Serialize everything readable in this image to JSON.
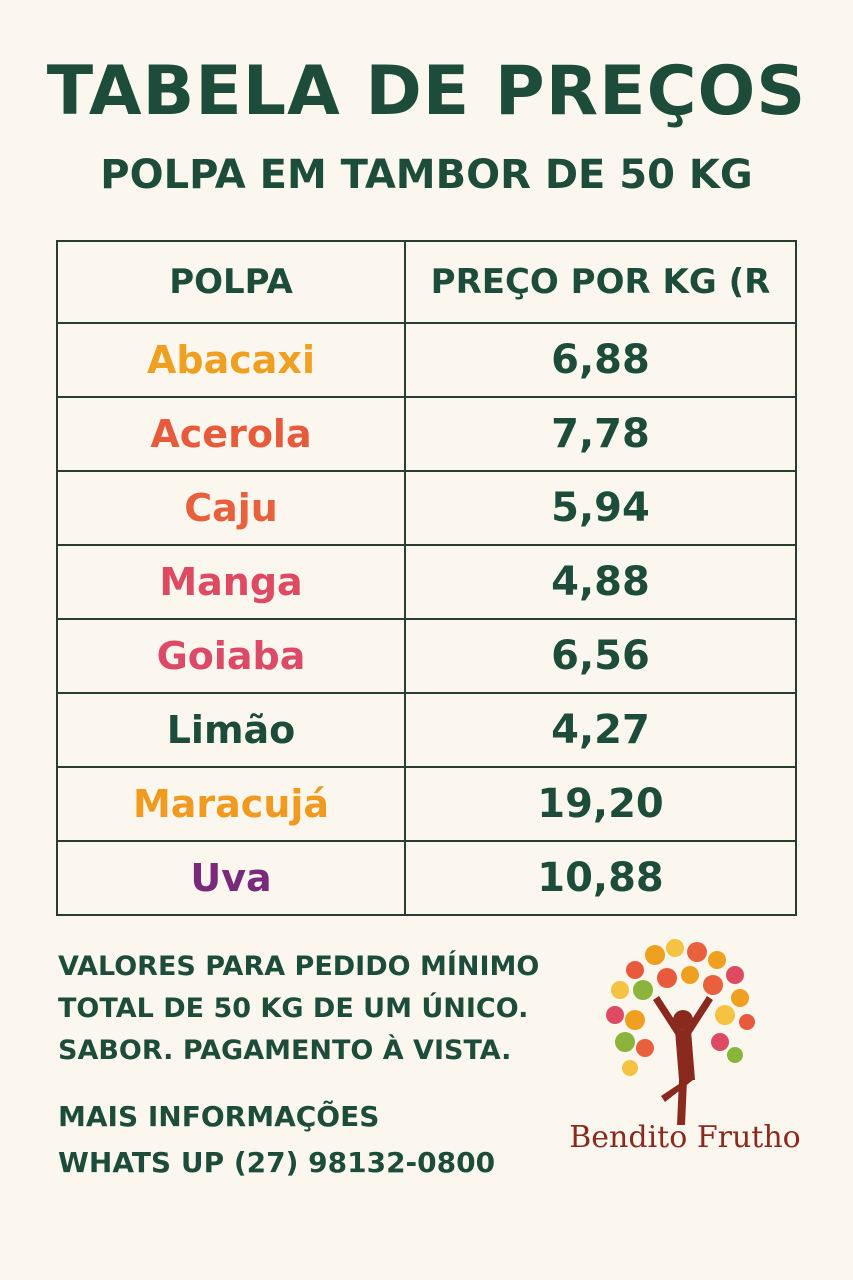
{
  "header": {
    "title": "TABELA DE PREÇOS",
    "subtitle": "POLPA EM TAMBOR DE 50 KG"
  },
  "table": {
    "columns": [
      "POLPA",
      "PREÇO POR KG (R"
    ],
    "rows": [
      {
        "fruit": "Abacaxi",
        "price": "6,88",
        "color": "#f0a020"
      },
      {
        "fruit": "Acerola",
        "price": "7,78",
        "color": "#e85a3c"
      },
      {
        "fruit": "Caju",
        "price": "5,94",
        "color": "#e8603c"
      },
      {
        "fruit": "Manga",
        "price": "4,88",
        "color": "#dd4a62"
      },
      {
        "fruit": "Goiaba",
        "price": "6,56",
        "color": "#dd4a68"
      },
      {
        "fruit": "Limão",
        "price": "4,27",
        "color": "#1d4d3a"
      },
      {
        "fruit": "Maracujá",
        "price": "19,20",
        "color": "#f09a20"
      },
      {
        "fruit": "Uva",
        "price": "10,88",
        "color": "#7a2a7a"
      }
    ]
  },
  "notes": {
    "line1": "VALORES PARA PEDIDO MÍNIMO",
    "line2": "TOTAL DE 50 KG DE UM ÚNICO.",
    "line3": "SABOR. PAGAMENTO À VISTA."
  },
  "contact": {
    "line1": "MAIS INFORMAÇÕES",
    "line2": "WHATS UP (27) 98132-0800"
  },
  "brand": {
    "name": "Bendito Frutho",
    "icon": "fruit-tree-person-icon"
  }
}
